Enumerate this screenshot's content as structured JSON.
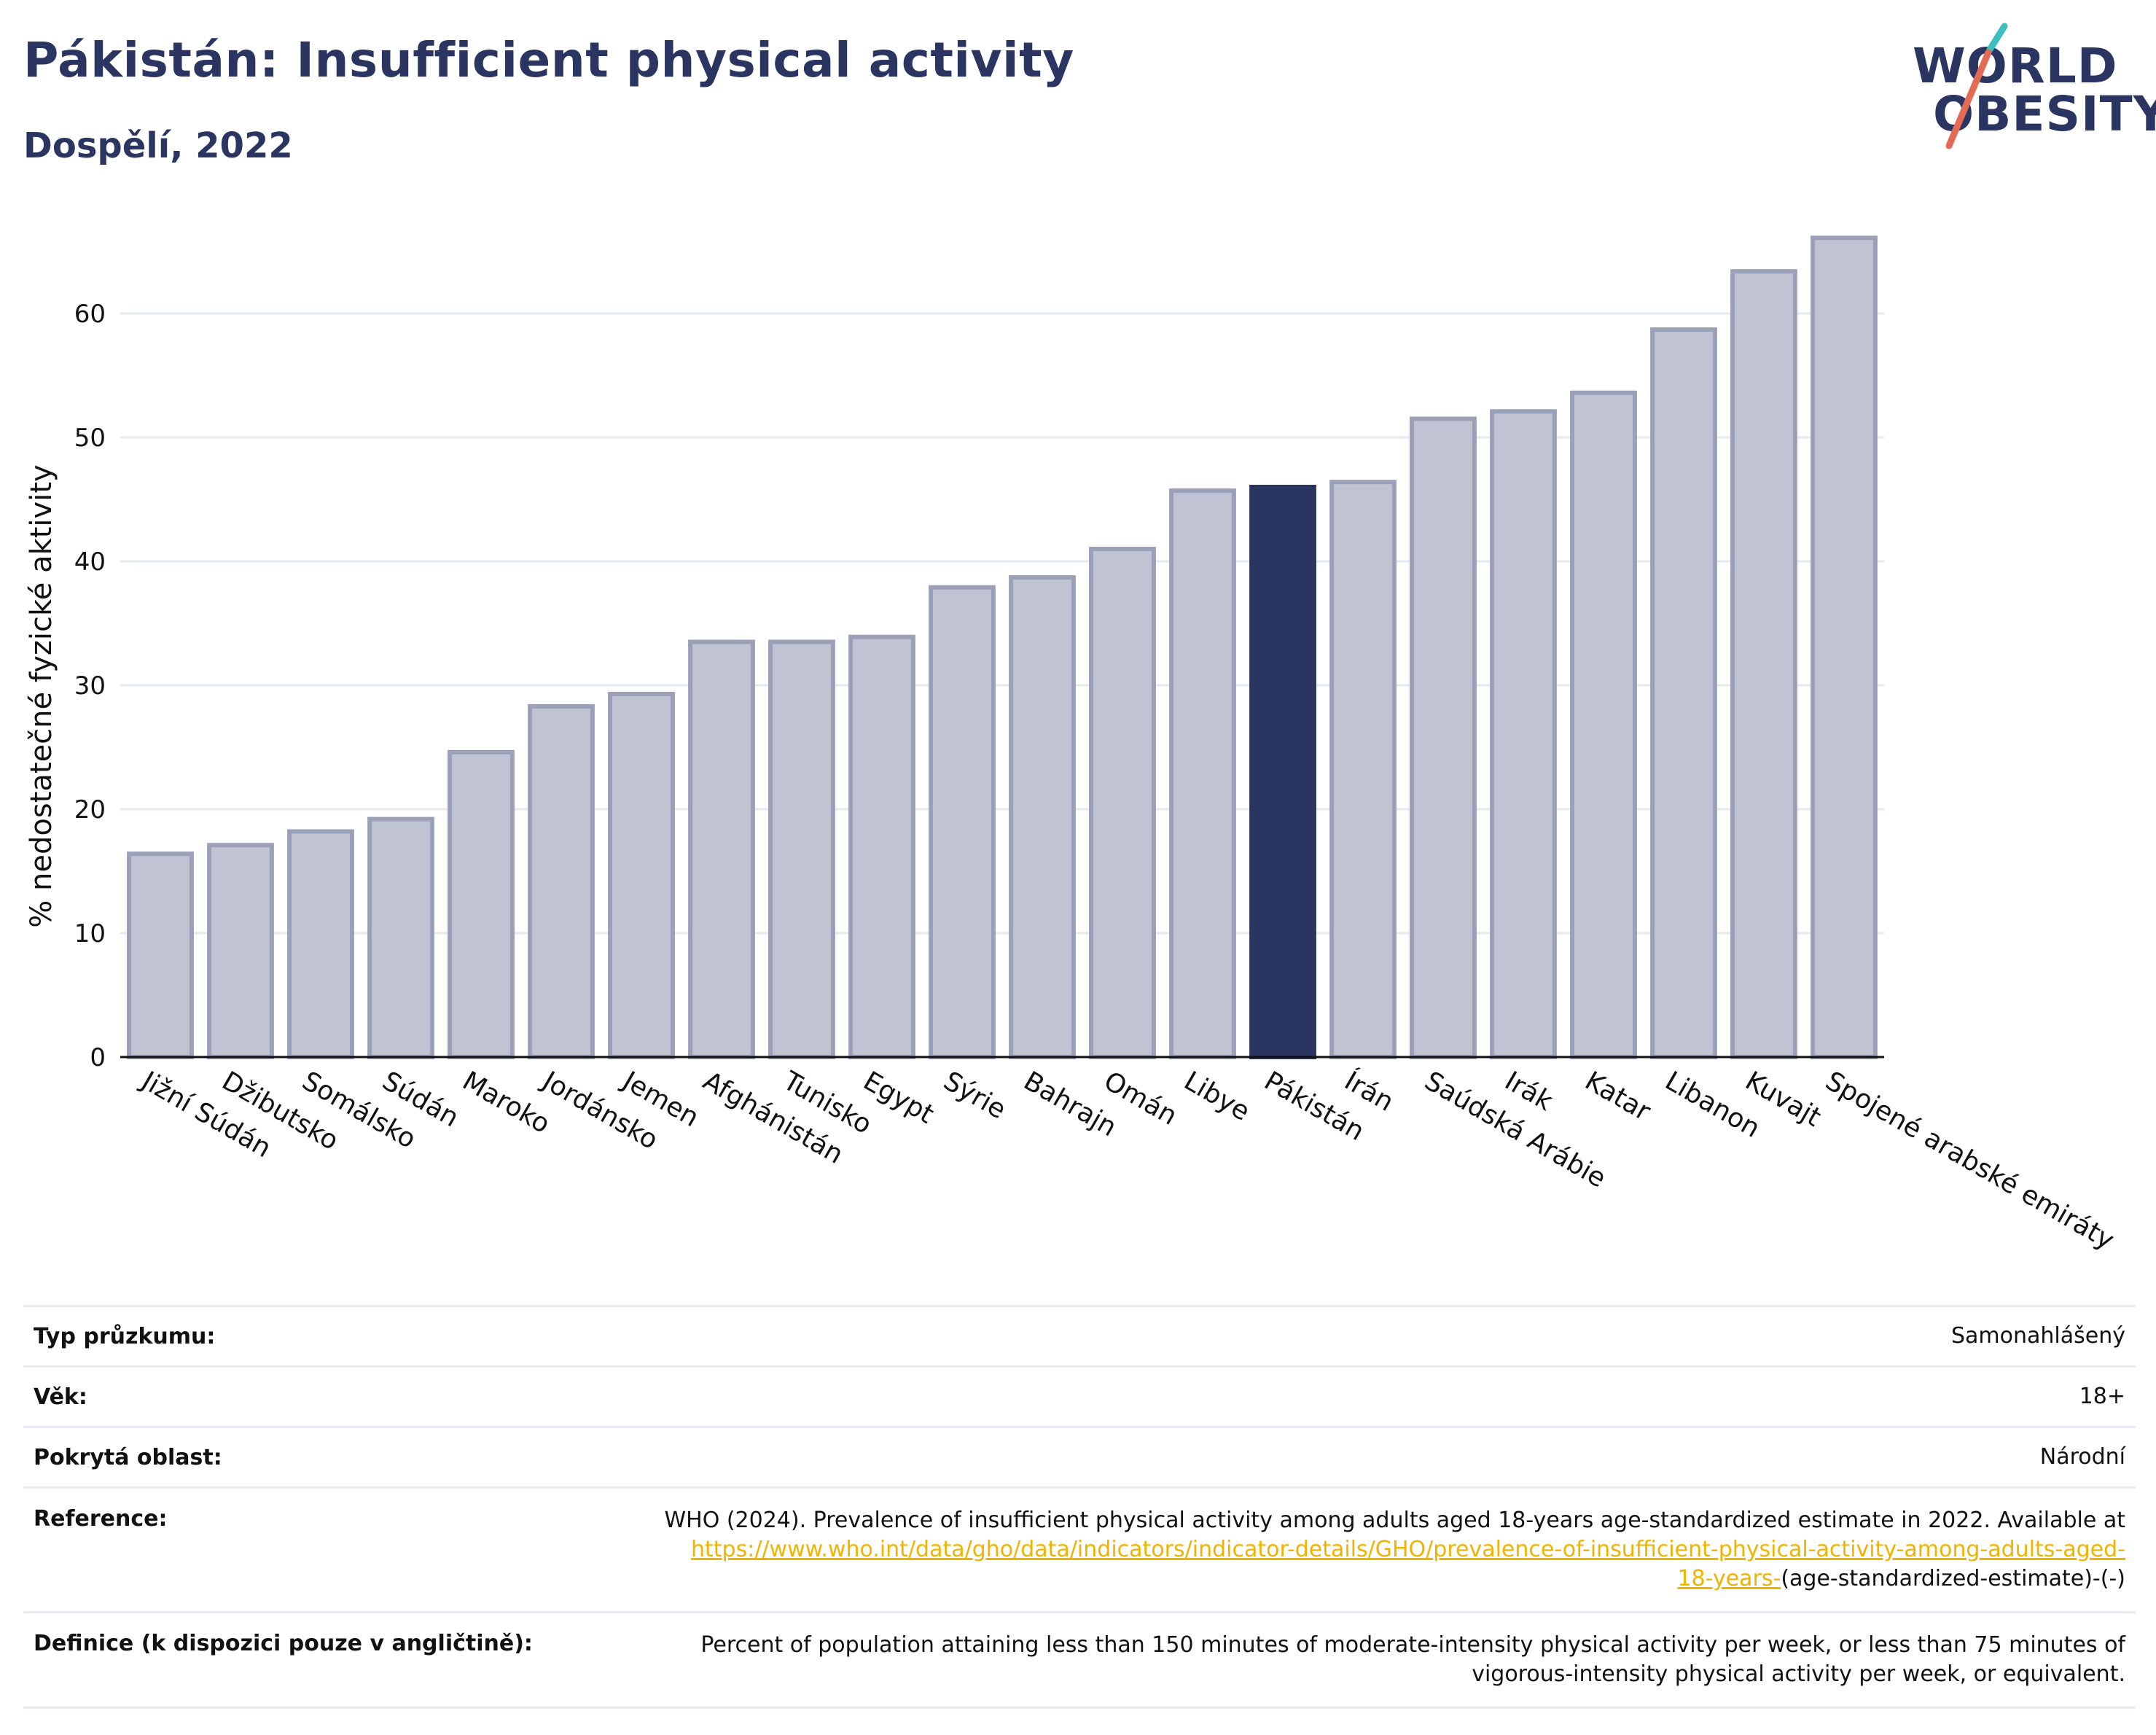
{
  "header": {
    "title": "Pákistán: Insufficient physical activity",
    "subtitle": "Dospělí, 2022"
  },
  "logo": {
    "line1": "WORLD",
    "line2": "OBESITY"
  },
  "chart_data": {
    "type": "bar",
    "title": "Pákistán: Insufficient physical activity",
    "subtitle": "Dospělí, 2022",
    "xlabel": "",
    "ylabel": "% nedostatečné fyzické aktivity",
    "ylim": [
      0,
      70
    ],
    "yticks": [
      0,
      10,
      20,
      30,
      40,
      50,
      60
    ],
    "grid": true,
    "highlight": "Pákistán",
    "colors": {
      "bar": "#c0c3d2",
      "bar_edge": "#9aa0b8",
      "highlight": "#2b3562",
      "grid": "#e6e8f0"
    },
    "categories": [
      "Jižní Súdán",
      "Džibutsko",
      "Somálsko",
      "Súdán",
      "Maroko",
      "Jordánsko",
      "Jemen",
      "Afghánistán",
      "Tunisko",
      "Egypt",
      "Sýrie",
      "Bahrajn",
      "Omán",
      "Libye",
      "Pákistán",
      "Írán",
      "Saúdská Arábie",
      "Irák",
      "Katar",
      "Libanon",
      "Kuvajt",
      "Spojené arabské emiráty"
    ],
    "values": [
      16.4,
      17.1,
      18.2,
      19.2,
      24.6,
      28.3,
      29.3,
      33.5,
      33.5,
      33.9,
      37.9,
      38.7,
      41.0,
      45.7,
      46.0,
      46.4,
      51.5,
      52.1,
      53.6,
      58.7,
      63.4,
      66.1
    ]
  },
  "meta": {
    "survey_label": "Typ průzkumu:",
    "survey_value": "Samonahlášený",
    "age_label": "Věk:",
    "age_value": "18+",
    "coverage_label": "Pokrytá oblast:",
    "coverage_value": "Národní",
    "reference_label": "Reference:",
    "reference_text": "WHO (2024). Prevalence of insufficient physical activity among adults aged 18-years age-standardized estimate in 2022. Available at",
    "reference_link_line1": "https://www.who.int/data/gho/data/indicators/indicator-details/GHO/prevalence-of-insufficient-physical-activity-among-adults-aged-",
    "reference_link_line2": "18-years-",
    "reference_tail": "(age-standardized-estimate)-(-)",
    "definition_label": "Definice (k dispozici pouze v angličtině):",
    "definition_line1": "Percent of population attaining less than 150 minutes of moderate-intensity physical activity per week, or less than 75 minutes of",
    "definition_line2": "vigorous-intensity physical activity per week, or equivalent."
  }
}
